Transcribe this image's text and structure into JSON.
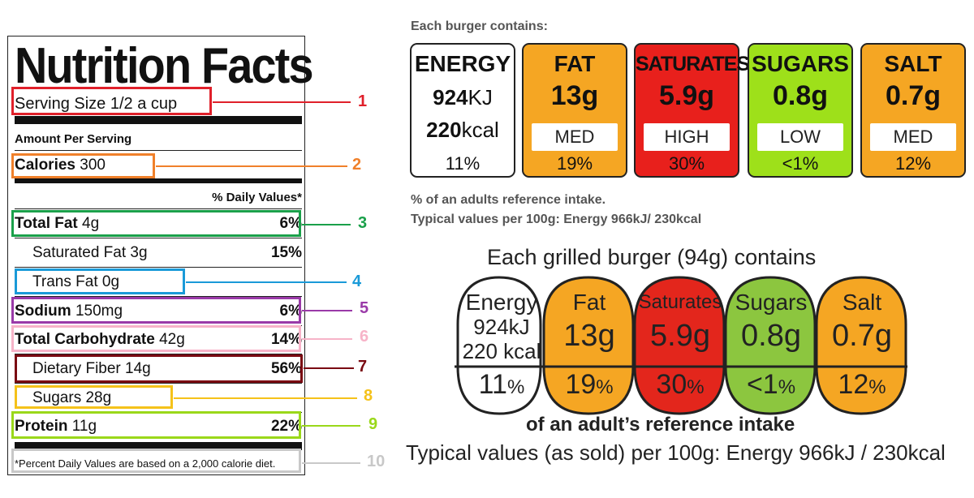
{
  "nutrition_facts": {
    "title": "Nutrition Facts",
    "serving_size": "Serving Size 1/2 a cup",
    "amount_per_serving": "Amount Per Serving",
    "calories_label": "Calories",
    "calories_value": "300",
    "daily_values_header": "% Daily Values*",
    "total_fat": {
      "label": "Total Fat",
      "amount": "4g",
      "pct": "6%"
    },
    "saturated_fat": {
      "label": "Saturated Fat 3g",
      "pct": "15%"
    },
    "trans_fat": {
      "label": "Trans Fat 0g"
    },
    "sodium": {
      "label": "Sodium",
      "amount": "150mg",
      "pct": "6%"
    },
    "total_carbohydrate": {
      "label": "Total Carbohydrate",
      "amount": "42g",
      "pct": "14%"
    },
    "dietary_fiber": {
      "label": "Dietary Fiber 14g",
      "pct": "56%"
    },
    "sugars": {
      "label": "Sugars 28g"
    },
    "protein": {
      "label": "Protein",
      "amount": "11g",
      "pct": "22%"
    },
    "footnote": "*Percent Daily Values are based on a 2,000 calorie diet."
  },
  "callouts": {
    "numbers": [
      "1",
      "2",
      "3",
      "4",
      "5",
      "6",
      "7",
      "8",
      "9",
      "10"
    ],
    "colors": [
      "#e0202a",
      "#f0802a",
      "#1aa04a",
      "#1a9ad8",
      "#9a3aa8",
      "#f7b3c8",
      "#7a0a12",
      "#f5c21a",
      "#9ad81a",
      "#c8c8c8"
    ]
  },
  "traffic_label": {
    "heading": "Each burger contains:",
    "energy": {
      "name": "ENERGY",
      "kj_value": "924",
      "kj_unit": "KJ",
      "kcal_value": "220",
      "kcal_unit": "kcal",
      "pct": "11%"
    },
    "nutrients": [
      {
        "name": "FAT",
        "value": "13g",
        "level": "MED",
        "pct": "19%",
        "color": "#f5a623"
      },
      {
        "name": "SATURATES",
        "value": "5.9g",
        "level": "HIGH",
        "pct": "30%",
        "color": "#e8201c"
      },
      {
        "name": "SUGARS",
        "value": "0.8g",
        "level": "LOW",
        "pct": "<1%",
        "color": "#9ee01a"
      },
      {
        "name": "SALT",
        "value": "0.7g",
        "level": "MED",
        "pct": "12%",
        "color": "#f5a623"
      }
    ],
    "note1": "% of an adults reference intake.",
    "note2": "Typical values per 100g: Energy 966kJ/ 230kcal"
  },
  "grilled_label": {
    "heading": "Each grilled burger (94g) contains",
    "energy": {
      "name": "Energy",
      "kj": "924kJ",
      "kcal": "220 kcal",
      "pct_num": "11",
      "pct_sign": "%"
    },
    "nutrients": [
      {
        "name": "Fat",
        "value": "13g",
        "pct_num": "19",
        "pct_sign": "%",
        "color": "#f5a623"
      },
      {
        "name": "Saturates",
        "value": "5.9g",
        "pct_num": "30",
        "pct_sign": "%",
        "color": "#e3261c"
      },
      {
        "name": "Sugars",
        "value": "0.8g",
        "pct_num": "<1",
        "pct_sign": "%",
        "color": "#8cc63f"
      },
      {
        "name": "Salt",
        "value": "0.7g",
        "pct_num": "12",
        "pct_sign": "%",
        "color": "#f5a623"
      }
    ],
    "footer1": "of an adult’s reference intake",
    "footer2": "Typical values (as sold) per 100g: Energy 966kJ / 230kcal"
  }
}
